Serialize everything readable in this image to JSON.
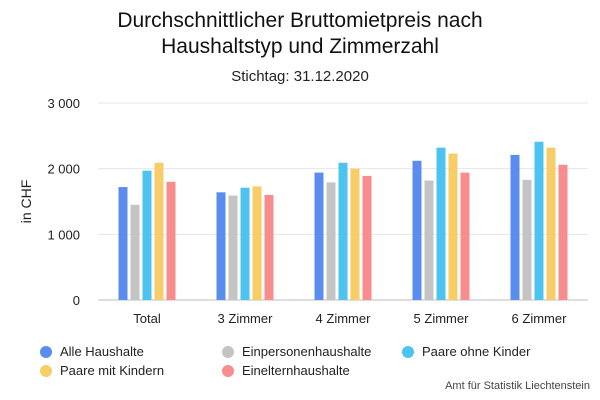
{
  "chart_data": {
    "type": "bar",
    "title_line1": "Durchschnittlicher Bruttomietpreis nach",
    "title_line2": "Haushaltstyp und Zimmerzahl",
    "subtitle": "Stichtag: 31.12.2020",
    "ylabel": "in CHF",
    "xlabel": "",
    "ylim": [
      0,
      3000
    ],
    "yticks": [
      0,
      1000,
      2000,
      3000
    ],
    "ytick_labels": [
      "0",
      "1 000",
      "2 000",
      "3 000"
    ],
    "grid": true,
    "legend_position": "bottom",
    "categories": [
      "Total",
      "3 Zimmer",
      "4 Zimmer",
      "5 Zimmer",
      "6 Zimmer"
    ],
    "series": [
      {
        "name": "Alle Haushalte",
        "color": "#5b8def",
        "values": [
          1720,
          1640,
          1940,
          2120,
          2210
        ]
      },
      {
        "name": "Einpersonenhaushalte",
        "color": "#c4c4c4",
        "values": [
          1450,
          1590,
          1790,
          1820,
          1830
        ]
      },
      {
        "name": "Paare ohne Kinder",
        "color": "#4dc3f0",
        "values": [
          1970,
          1710,
          2090,
          2320,
          2410
        ]
      },
      {
        "name": "Paare mit Kindern",
        "color": "#f7cd67",
        "values": [
          2090,
          1730,
          2000,
          2230,
          2320
        ]
      },
      {
        "name": "Einelternhaushalte",
        "color": "#f78d8d",
        "values": [
          1800,
          1600,
          1890,
          1940,
          2060
        ]
      }
    ]
  },
  "source": "Amt für Statistik Liechtenstein"
}
